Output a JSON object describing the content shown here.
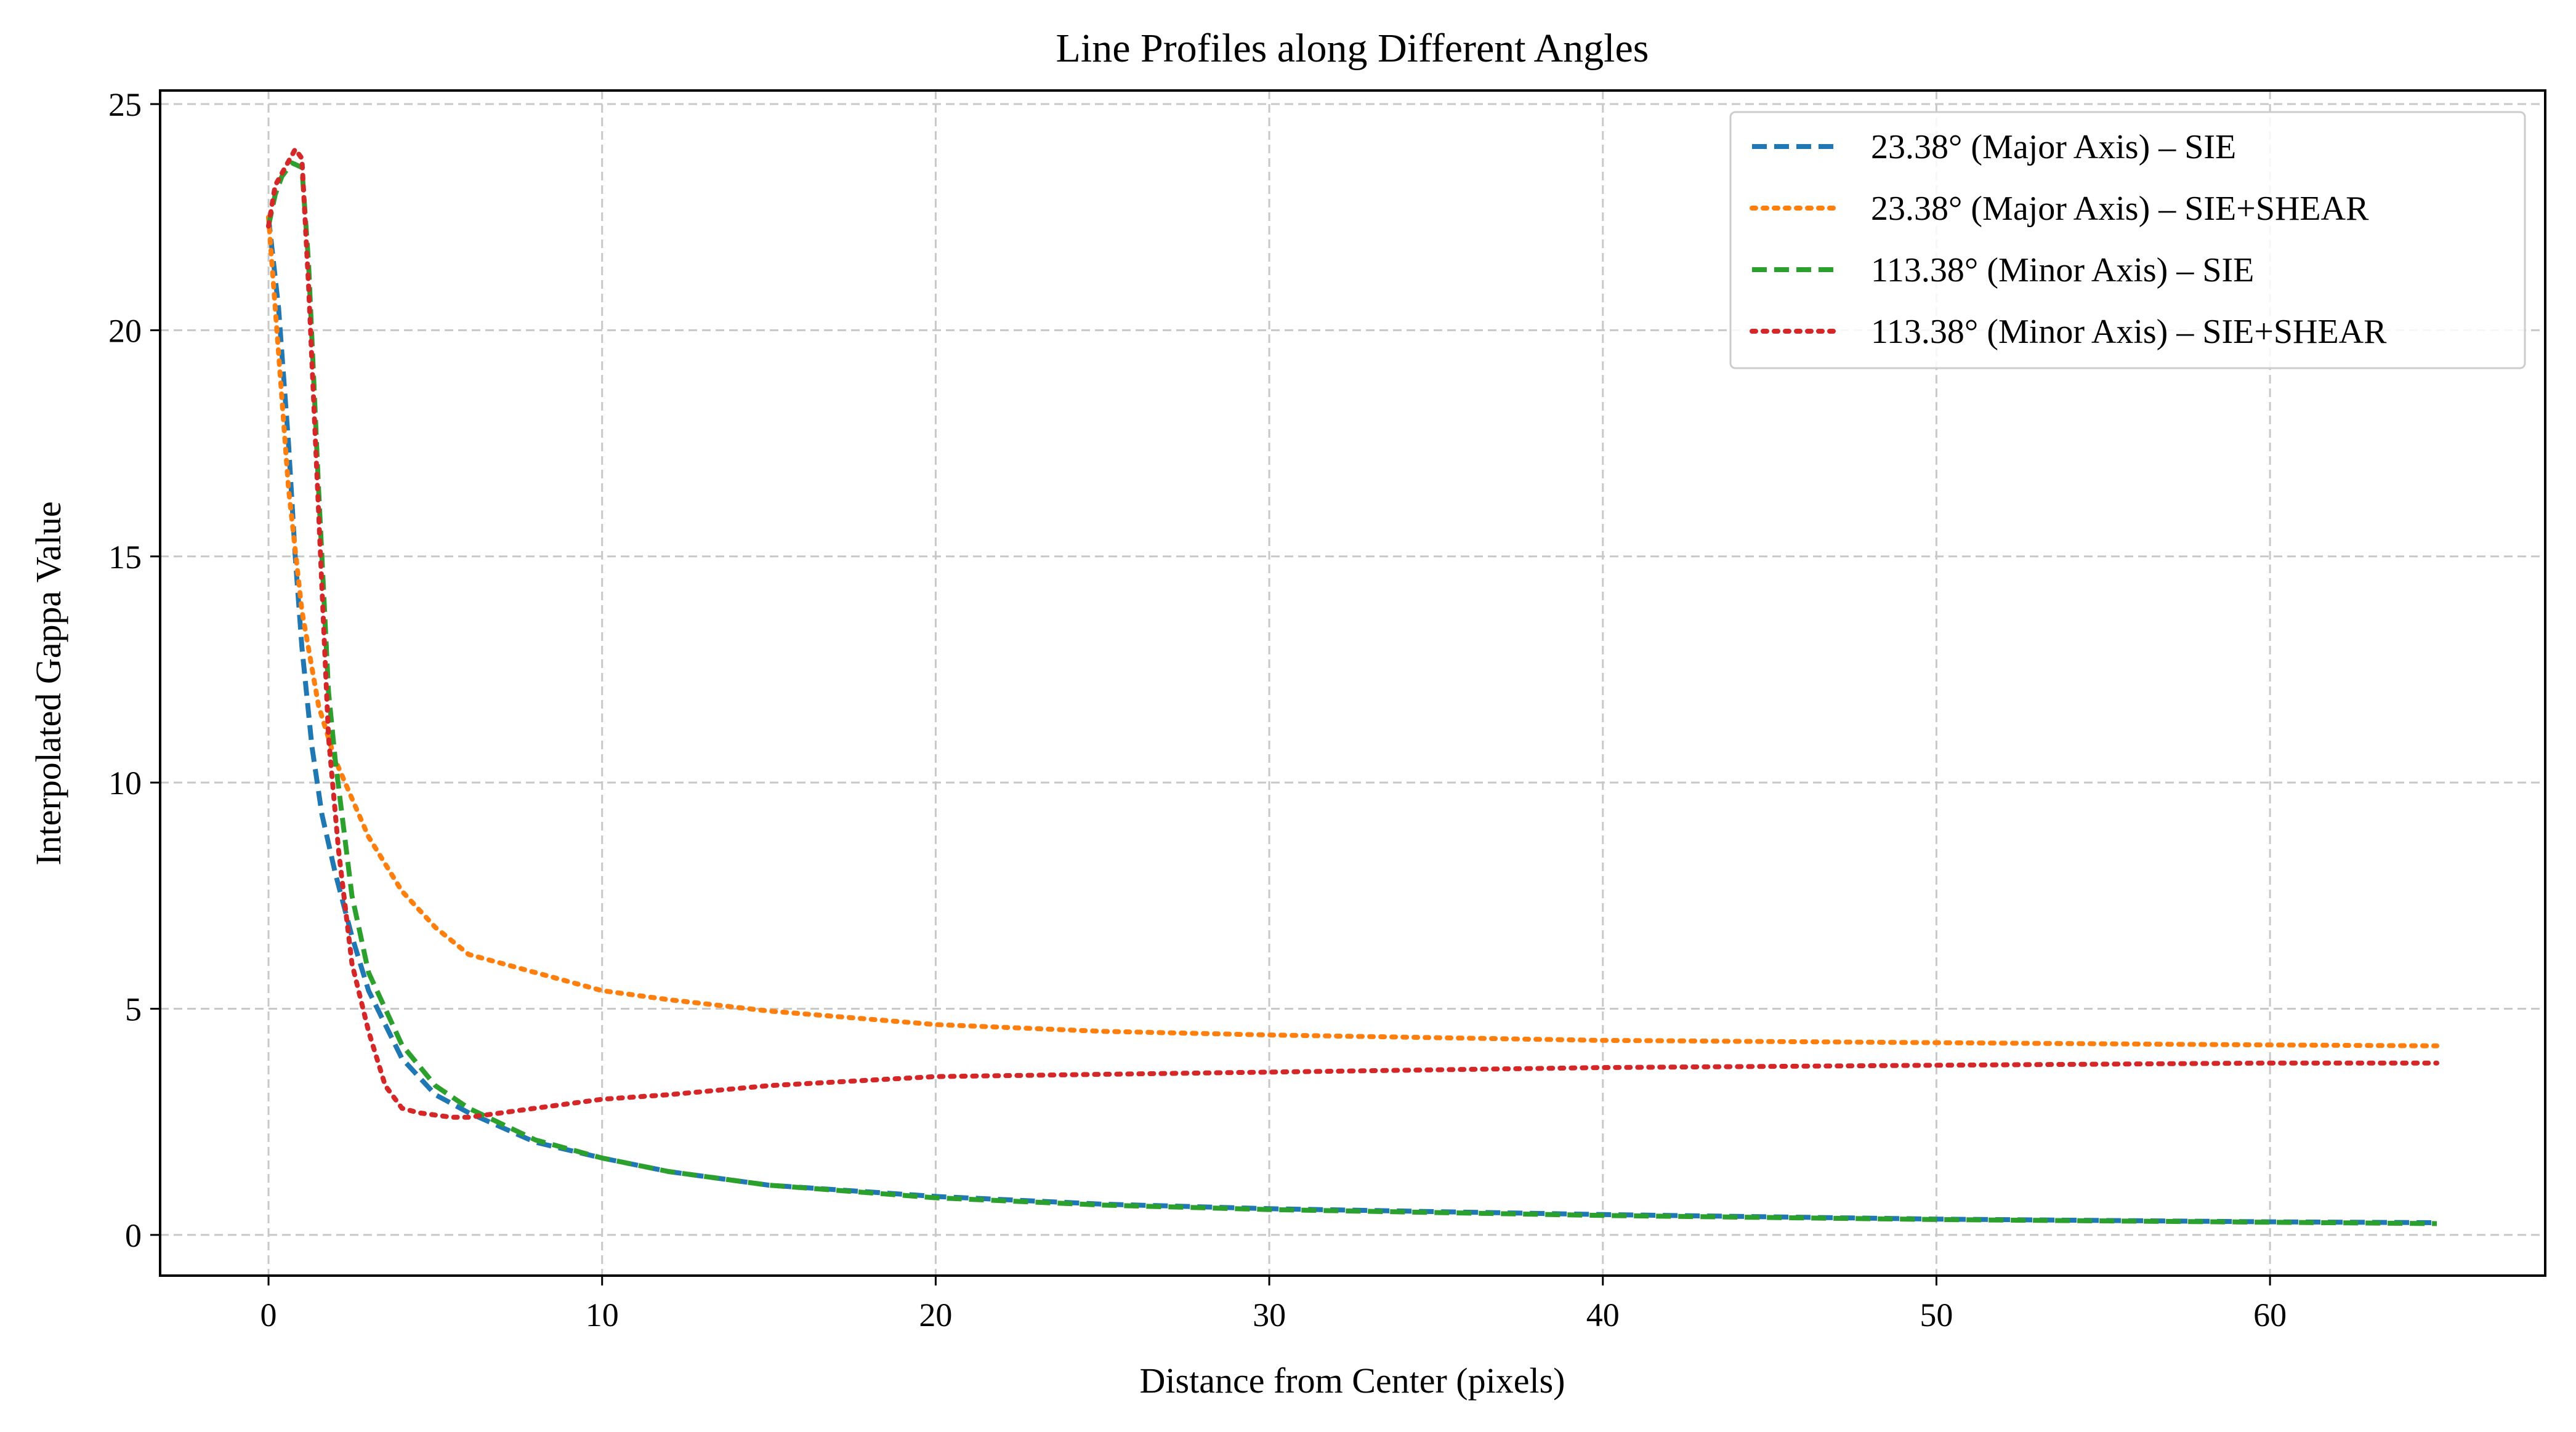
{
  "chart_data": {
    "type": "line",
    "title": "Line Profiles along Different Angles",
    "xlabel": "Distance from Center (pixels)",
    "ylabel": "Interpolated Gappa Value",
    "xlim": [
      -3.25,
      68.25
    ],
    "ylim": [
      -0.9,
      25.3
    ],
    "xticks": [
      "0",
      "10",
      "20",
      "30",
      "40",
      "50",
      "60"
    ],
    "xtick_values": [
      0,
      10,
      20,
      30,
      40,
      50,
      60
    ],
    "yticks": [
      "0",
      "5",
      "10",
      "15",
      "20",
      "25"
    ],
    "ytick_values": [
      0,
      5,
      10,
      15,
      20,
      25
    ],
    "grid": true,
    "legend_position": "top-right",
    "series": [
      {
        "name": "23.38° (Major Axis) – SIE",
        "color": "#1f77b4",
        "style": "dashed",
        "x": [
          0,
          0.3,
          0.6,
          0.8,
          1,
          1.3,
          1.6,
          2,
          2.5,
          3,
          4,
          5,
          6,
          8,
          10,
          12,
          15,
          20,
          25,
          30,
          40,
          50,
          60,
          65
        ],
        "y": [
          22.5,
          20.5,
          17.5,
          15,
          13,
          10.8,
          9.3,
          8,
          6.6,
          5.4,
          3.9,
          3.1,
          2.7,
          2.05,
          1.7,
          1.4,
          1.1,
          0.85,
          0.68,
          0.58,
          0.45,
          0.35,
          0.29,
          0.27
        ]
      },
      {
        "name": "23.38° (Major Axis) – SIE+SHEAR",
        "color": "#ff7f0e",
        "style": "dotted",
        "x": [
          0,
          0.3,
          0.6,
          1,
          1.5,
          2,
          3,
          4,
          5,
          6,
          8,
          10,
          12,
          15,
          20,
          25,
          30,
          40,
          50,
          60,
          65
        ],
        "y": [
          22.5,
          19.5,
          16.5,
          13.8,
          11.7,
          10.5,
          8.8,
          7.6,
          6.8,
          6.2,
          5.8,
          5.4,
          5.2,
          4.95,
          4.65,
          4.5,
          4.42,
          4.3,
          4.25,
          4.2,
          4.18
        ]
      },
      {
        "name": "113.38° (Minor Axis) – SIE",
        "color": "#2ca02c",
        "style": "dashed",
        "x": [
          0,
          0.2,
          0.4,
          0.7,
          1,
          1.2,
          1.5,
          1.8,
          2,
          2.5,
          3,
          4,
          5,
          6,
          8,
          10,
          12,
          15,
          20,
          25,
          30,
          40,
          50,
          60,
          65
        ],
        "y": [
          22.3,
          23,
          23.4,
          23.7,
          23.6,
          21.5,
          16.5,
          12,
          10.5,
          7.5,
          5.8,
          4.2,
          3.3,
          2.8,
          2.1,
          1.7,
          1.4,
          1.1,
          0.82,
          0.66,
          0.56,
          0.43,
          0.34,
          0.28,
          0.25
        ]
      },
      {
        "name": "113.38° (Minor Axis) – SIE+SHEAR",
        "color": "#d62728",
        "style": "dotted",
        "x": [
          0,
          0.2,
          0.5,
          0.8,
          1,
          1.2,
          1.5,
          1.8,
          2.1,
          2.5,
          3,
          3.5,
          4,
          4.5,
          5,
          5.5,
          6,
          7,
          8,
          10,
          12,
          15,
          20,
          25,
          30,
          40,
          50,
          60,
          65
        ],
        "y": [
          22.3,
          23.2,
          23.6,
          24,
          23.8,
          21,
          16,
          11,
          8.5,
          6,
          4.5,
          3.3,
          2.8,
          2.7,
          2.65,
          2.6,
          2.6,
          2.7,
          2.8,
          3.0,
          3.1,
          3.3,
          3.5,
          3.55,
          3.6,
          3.7,
          3.75,
          3.8,
          3.8
        ]
      }
    ]
  }
}
